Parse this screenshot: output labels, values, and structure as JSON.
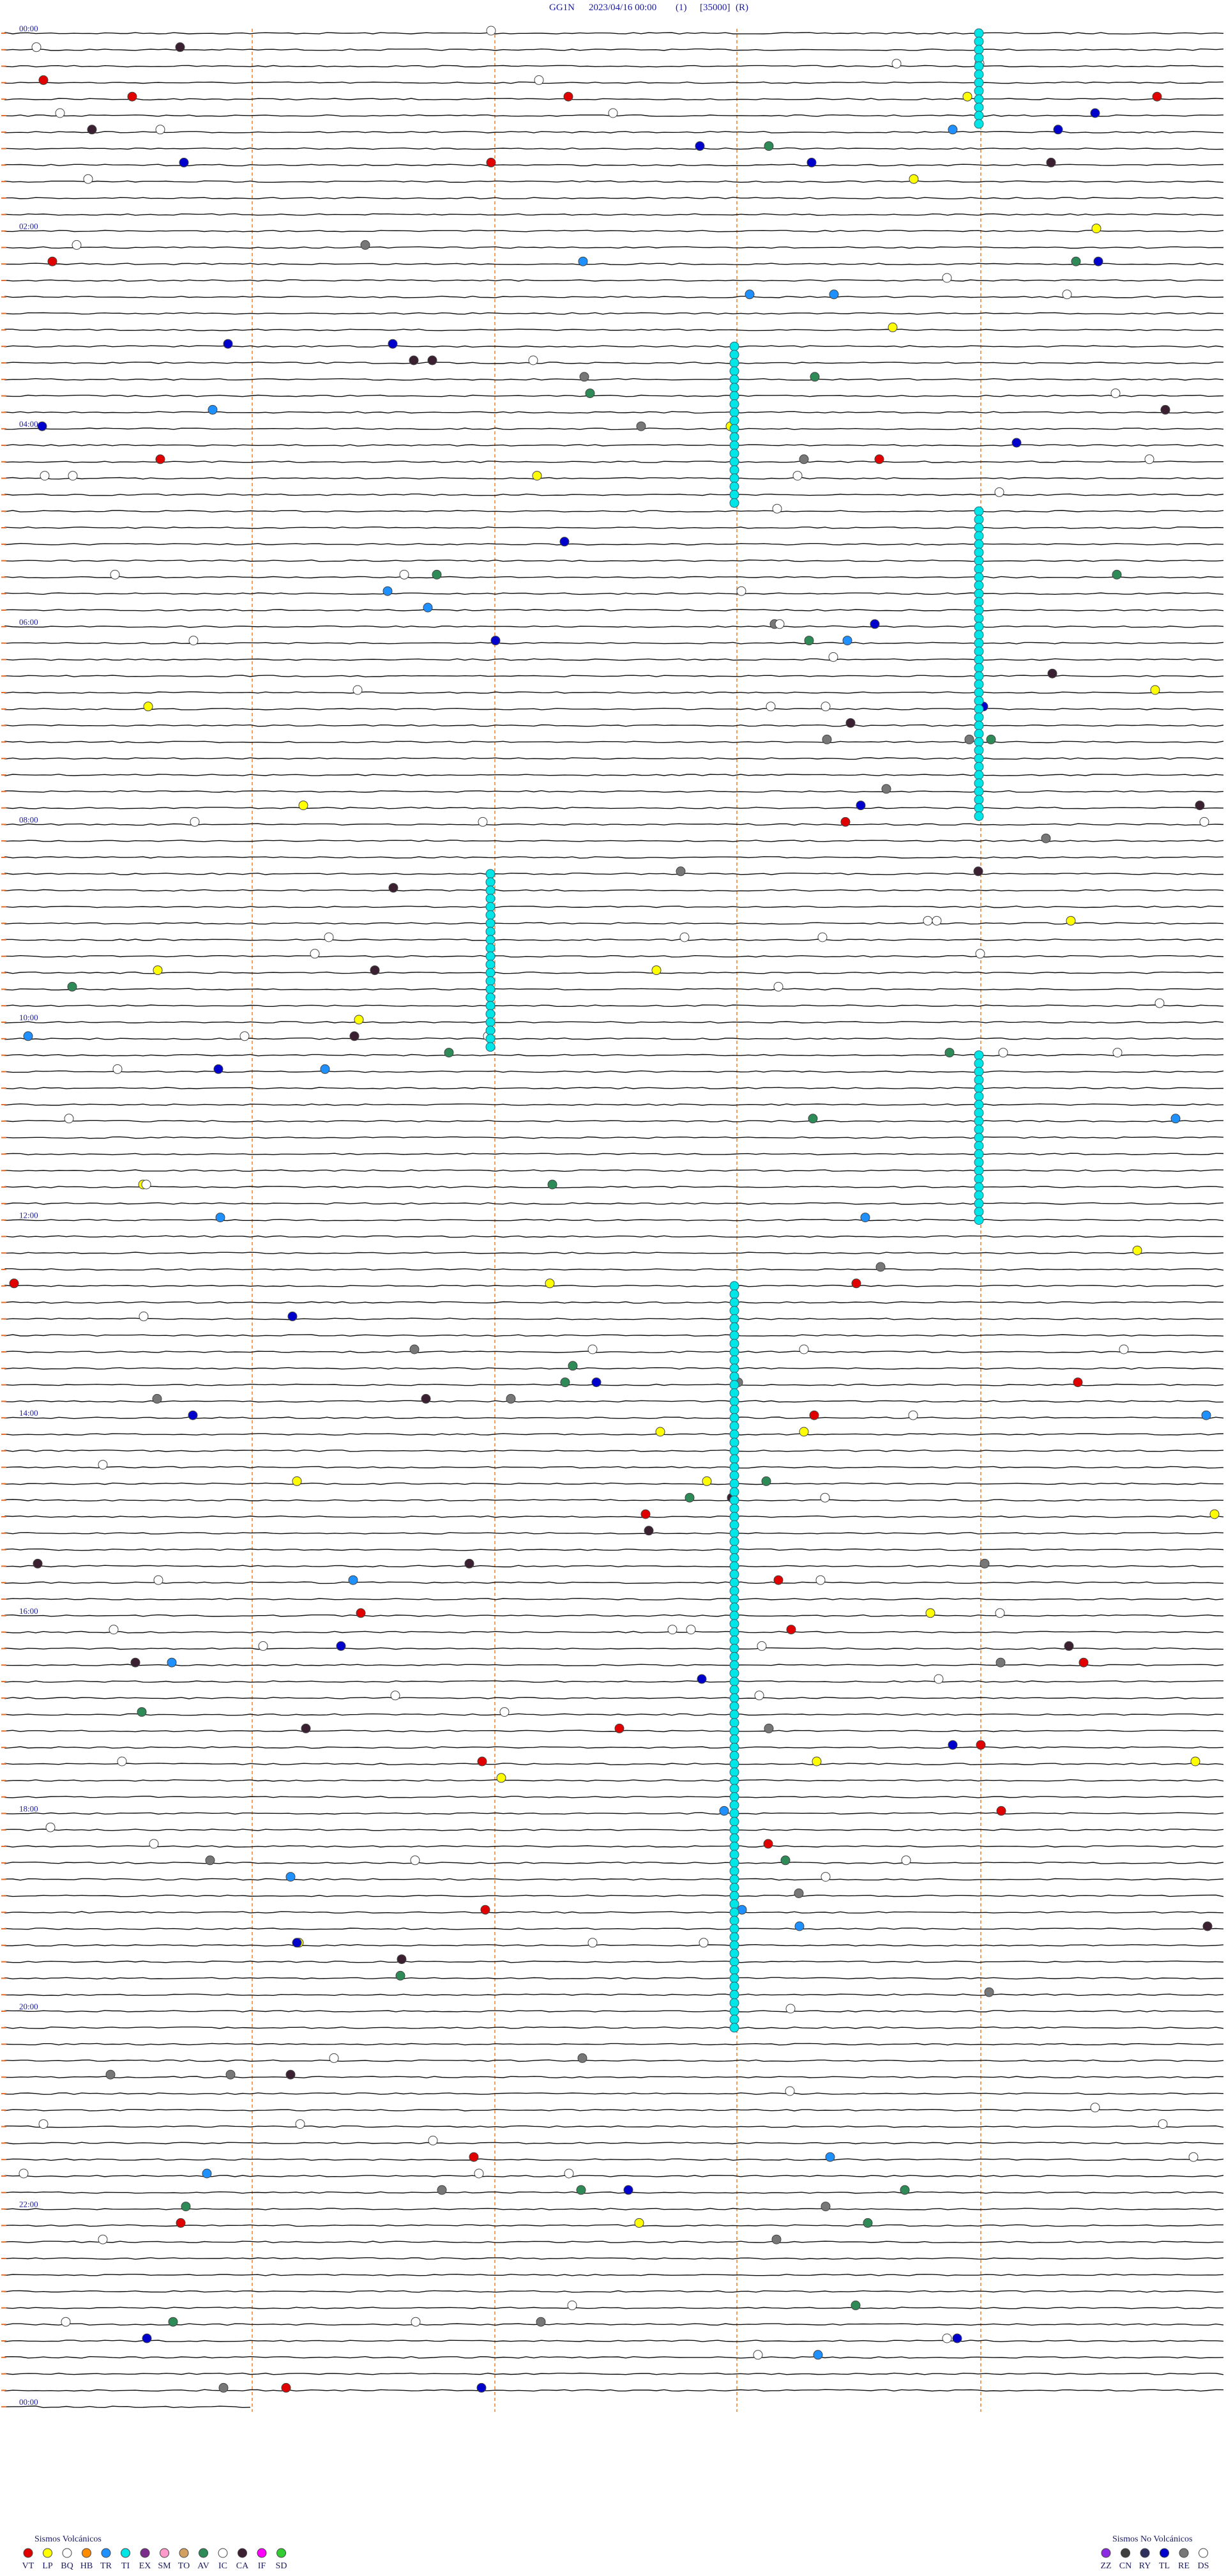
{
  "header": {
    "station": "GG1N",
    "datetime": "2023/04/16 00:00",
    "channel": "(1)",
    "scale": "[35000]",
    "mode": "(R)"
  },
  "time_labels": [
    "00:00",
    "02:00",
    "04:00",
    "06:00",
    "08:00",
    "10:00",
    "12:00",
    "14:00",
    "16:00",
    "18:00",
    "20:00",
    "22:00",
    "00:00"
  ],
  "legend": {
    "volcanic": {
      "title": "Sismos Volcánicos",
      "items": [
        {
          "code": "VT",
          "color": "#e00000"
        },
        {
          "code": "LP",
          "color": "#ffff00"
        },
        {
          "code": "BQ",
          "color": "#ffffff"
        },
        {
          "code": "HB",
          "color": "#ff8c00"
        },
        {
          "code": "TR",
          "color": "#1e90ff"
        },
        {
          "code": "TI",
          "color": "#00e5e5"
        },
        {
          "code": "EX",
          "color": "#7b2d8b"
        },
        {
          "code": "SM",
          "color": "#ff99cc"
        },
        {
          "code": "TO",
          "color": "#d2a060"
        },
        {
          "code": "AV",
          "color": "#2e8b57"
        },
        {
          "code": "IC",
          "color": "#ffffff"
        },
        {
          "code": "CA",
          "color": "#3a2030"
        },
        {
          "code": "IF",
          "color": "#ff00ff"
        },
        {
          "code": "SD",
          "color": "#33cc33"
        }
      ]
    },
    "non_volcanic": {
      "title": "Sismos No Volcánicos",
      "items": [
        {
          "code": "ZZ",
          "color": "#8a2be2"
        },
        {
          "code": "CN",
          "color": "#404040"
        },
        {
          "code": "RY",
          "color": "#303060"
        },
        {
          "code": "TL",
          "color": "#0000cc"
        },
        {
          "code": "RE",
          "color": "#777777"
        },
        {
          "code": "DS",
          "color": "#ffffff"
        }
      ]
    }
  }
}
